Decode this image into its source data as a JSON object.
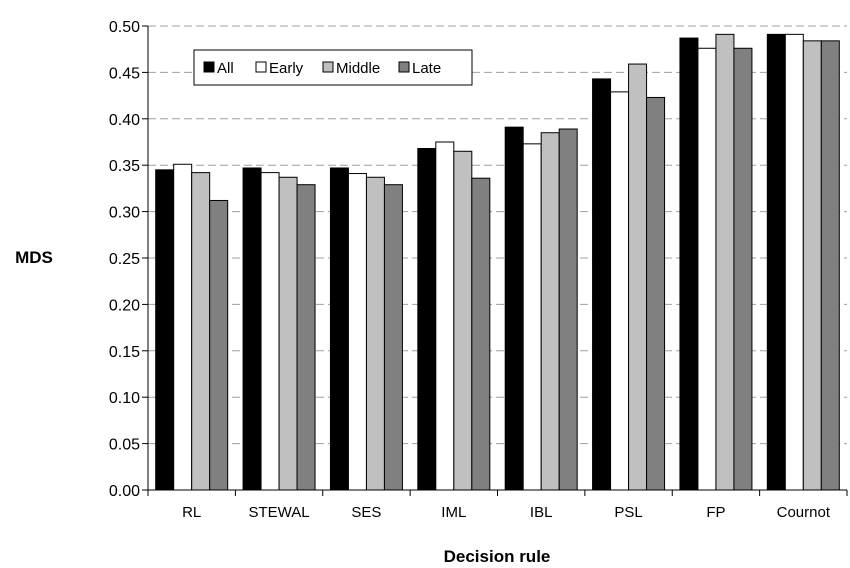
{
  "chart_data": {
    "type": "bar",
    "title": "",
    "xlabel": "Decision rule",
    "ylabel": "MDS",
    "ylim": [
      0,
      0.5
    ],
    "ytick_step": 0.05,
    "grid": "horizontal dashed",
    "legend_placement": "top-left",
    "categories": [
      "RL",
      "STEWAL",
      "SES",
      "IML",
      "IBL",
      "PSL",
      "FP",
      "Cournot"
    ],
    "series": [
      {
        "name": "All",
        "color": "#000000",
        "values": [
          0.345,
          0.347,
          0.347,
          0.368,
          0.391,
          0.443,
          0.487,
          0.491
        ]
      },
      {
        "name": "Early",
        "color": "#ffffff",
        "values": [
          0.351,
          0.342,
          0.341,
          0.375,
          0.373,
          0.429,
          0.476,
          0.491
        ]
      },
      {
        "name": "Middle",
        "color": "#c0c0c0",
        "values": [
          0.342,
          0.337,
          0.337,
          0.365,
          0.385,
          0.459,
          0.491,
          0.484
        ]
      },
      {
        "name": "Late",
        "color": "#808080",
        "values": [
          0.312,
          0.329,
          0.329,
          0.336,
          0.389,
          0.423,
          0.476,
          0.484
        ]
      }
    ]
  }
}
